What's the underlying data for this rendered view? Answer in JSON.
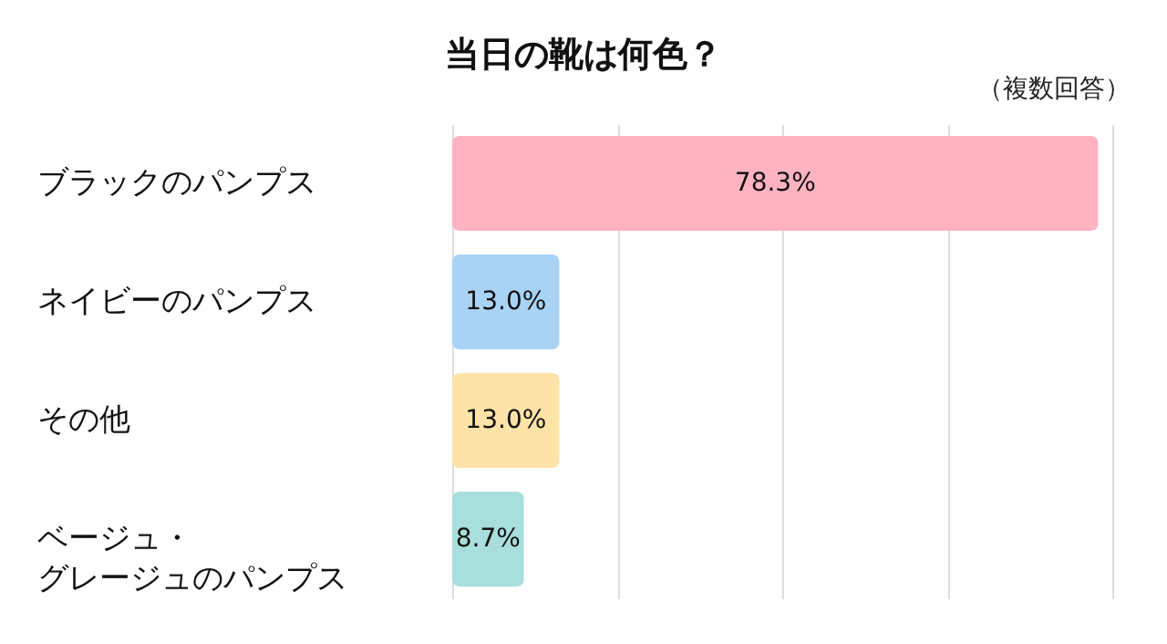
{
  "chart_data": {
    "type": "bar",
    "orientation": "horizontal",
    "title": "当日の靴は何色？",
    "annotations": [
      "（複数回答）"
    ],
    "categories": [
      "ブラックのパンプス",
      "ネイビーのパンプス",
      "その他",
      "ベージュ・グレージュのパンプス"
    ],
    "values": [
      78.3,
      13.0,
      13.0,
      8.7
    ],
    "value_labels": [
      "78.3%",
      "13.0%",
      "13.0%",
      "8.7%"
    ],
    "colors": [
      "#ffb3c1",
      "#a9d3f5",
      "#fde3a7",
      "#a8dedb"
    ],
    "xlim": [
      0,
      80
    ],
    "xticks": [
      {
        "value": 0,
        "label": null
      },
      {
        "value": 20,
        "label": null
      },
      {
        "value": 40,
        "label": null
      },
      {
        "value": 60,
        "label": null
      },
      {
        "value": 80,
        "label": null
      }
    ],
    "grid": "x",
    "tick_labels": "y"
  }
}
